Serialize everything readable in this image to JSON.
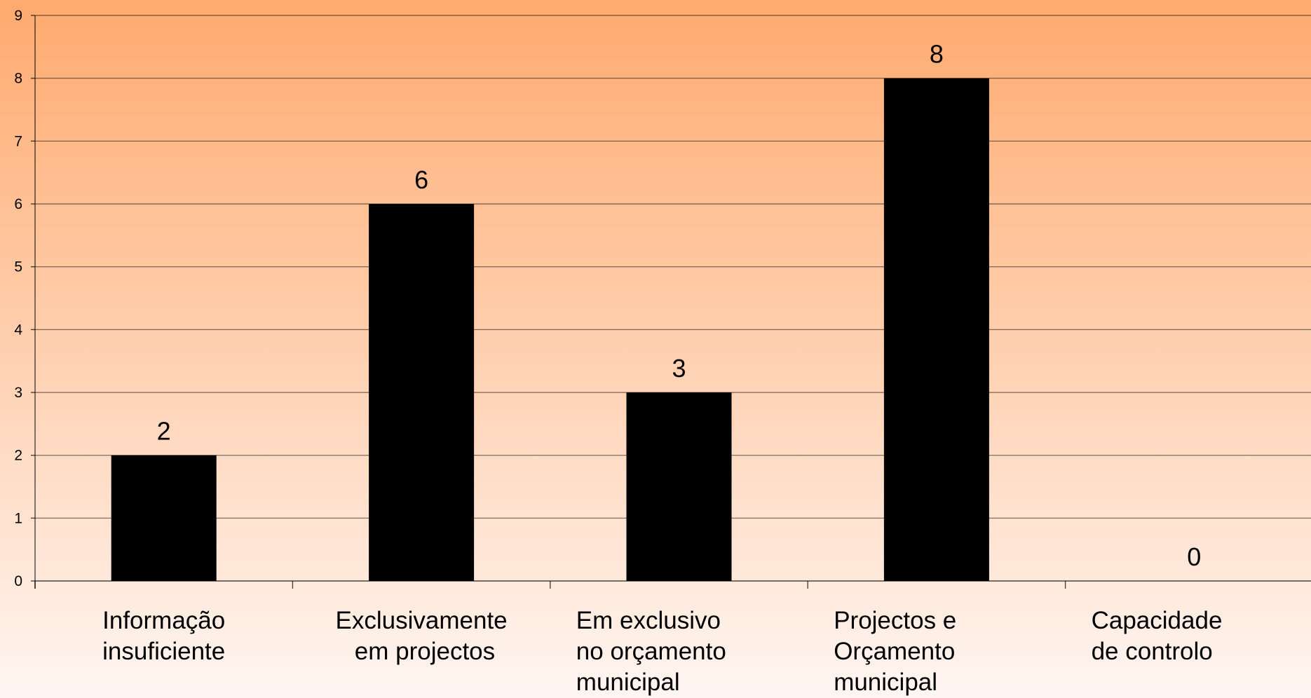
{
  "chart_data": {
    "type": "bar",
    "categories": [
      [
        "Informação",
        "insuficiente"
      ],
      [
        "Exclusivamente",
        " em projectos"
      ],
      [
        "Em exclusivo",
        "no orçamento",
        "municipal"
      ],
      [
        "Projectos e",
        "Orçamento",
        "municipal"
      ],
      [
        "Capacidade",
        "de controlo"
      ]
    ],
    "values": [
      2,
      6,
      3,
      8,
      0
    ],
    "data_labels": [
      "2",
      "6",
      "3",
      "8",
      "0"
    ],
    "y_ticks": [
      "0",
      "1",
      "2",
      "3",
      "4",
      "5",
      "6",
      "7",
      "8",
      "9"
    ],
    "ylim": [
      0,
      9
    ],
    "title": "",
    "xlabel": "",
    "ylabel": "",
    "grid": true,
    "legend": "none",
    "bar_color": "#000000",
    "gridline_color": "#000000",
    "text_color": "#000000",
    "background_gradient": [
      "#FFAA6E",
      "#FFF6F2"
    ]
  }
}
